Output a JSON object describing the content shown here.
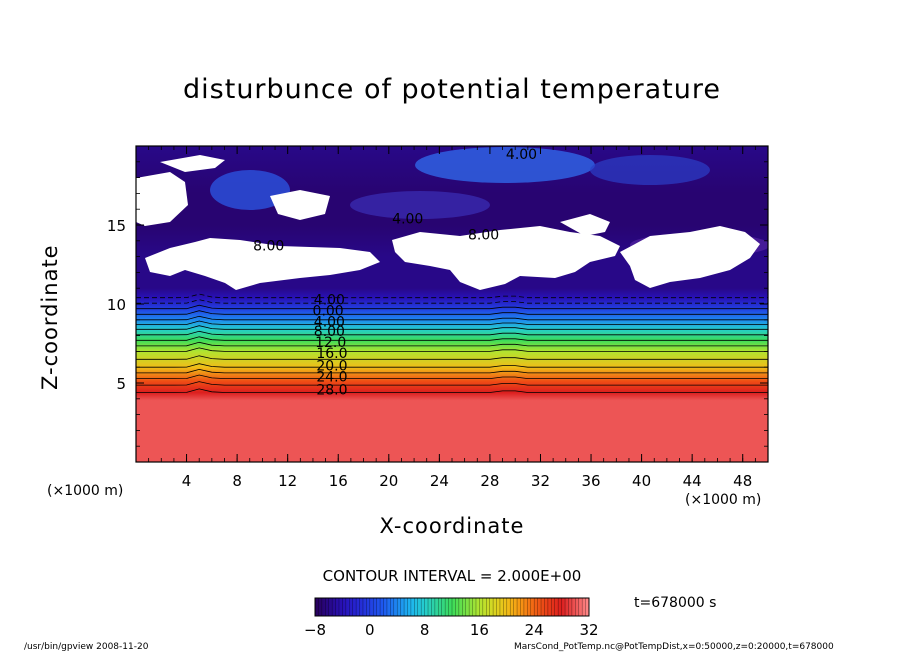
{
  "chart_data": {
    "type": "heatmap",
    "title": "disturbunce of potential temperature",
    "xlabel": "X-coordinate",
    "ylabel": "Z-coordinate",
    "x_unit": "(×1000 m)",
    "z_unit": "(×1000 m)",
    "xlim": [
      0,
      50
    ],
    "zlim": [
      0,
      20
    ],
    "x_ticks": [
      "4",
      "8",
      "12",
      "16",
      "20",
      "24",
      "28",
      "32",
      "36",
      "40",
      "44",
      "48"
    ],
    "z_ticks": [
      "5",
      "10",
      "15"
    ],
    "colorbar": {
      "min": -8,
      "max": 32,
      "step": 2,
      "tick_labels": [
        "−8",
        "0",
        "8",
        "16",
        "24",
        "32"
      ]
    },
    "contour_interval_text": "CONTOUR INTERVAL = 2.000E+00",
    "time_text": "t=678000 s",
    "contour_labels": [
      {
        "text": "4.00",
        "x": 30.5,
        "z": 19.5
      },
      {
        "text": "4.00",
        "x": 21.5,
        "z": 15.4
      },
      {
        "text": "8.00",
        "x": 10.5,
        "z": 13.7
      },
      {
        "text": "8.00",
        "x": 27.5,
        "z": 14.4
      },
      {
        "text": "4.00",
        "x": 15.3,
        "z": 10.3
      },
      {
        "text": "0.00",
        "x": 15.2,
        "z": 9.6
      },
      {
        "text": "4.00",
        "x": 15.3,
        "z": 8.9
      },
      {
        "text": "8.00",
        "x": 15.3,
        "z": 8.3
      },
      {
        "text": "12.0",
        "x": 15.4,
        "z": 7.6
      },
      {
        "text": "16.0",
        "x": 15.5,
        "z": 6.9
      },
      {
        "text": "20.0",
        "x": 15.5,
        "z": 6.1
      },
      {
        "text": "24.0",
        "x": 15.5,
        "z": 5.4
      },
      {
        "text": "28.0",
        "x": 15.5,
        "z": 4.6
      }
    ],
    "profile": [
      {
        "z": 0,
        "value": 30
      },
      {
        "z": 3.9,
        "value": 30
      },
      {
        "z": 4.4,
        "value": 28
      },
      {
        "z": 5.1,
        "value": 25
      },
      {
        "z": 6.0,
        "value": 20
      },
      {
        "z": 7.0,
        "value": 16
      },
      {
        "z": 7.7,
        "value": 12
      },
      {
        "z": 8.4,
        "value": 8
      },
      {
        "z": 9.0,
        "value": 4
      },
      {
        "z": 9.7,
        "value": 0
      },
      {
        "z": 10.4,
        "value": -4
      },
      {
        "z": 11.0,
        "value": -6
      },
      {
        "z": 13.0,
        "value": -6
      },
      {
        "z": 15.0,
        "value": -7
      },
      {
        "z": 17.0,
        "value": -7
      },
      {
        "z": 20.0,
        "value": -6
      }
    ]
  },
  "footer": {
    "left": "/usr/bin/gpview  2008-11-20",
    "right": "MarsCond_PotTemp.nc@PotTempDist,x=0:50000,z=0:20000,t=678000"
  }
}
